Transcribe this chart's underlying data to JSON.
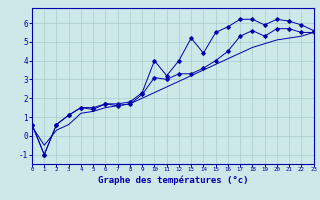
{
  "xlabel": "Graphe des températures (°c)",
  "background_color": "#cce8e8",
  "grid_color": "#aacccc",
  "line_color": "#0000aa",
  "x_hours": [
    0,
    1,
    2,
    3,
    4,
    5,
    6,
    7,
    8,
    9,
    10,
    11,
    12,
    13,
    14,
    15,
    16,
    17,
    18,
    19,
    20,
    21,
    22,
    23
  ],
  "temps_line1": [
    0.6,
    -1.0,
    0.6,
    1.1,
    1.5,
    1.5,
    1.7,
    1.7,
    1.8,
    2.3,
    4.0,
    3.2,
    4.0,
    5.2,
    4.4,
    5.5,
    5.8,
    6.2,
    6.2,
    5.9,
    6.2,
    6.1,
    5.9,
    5.6
  ],
  "temps_line2": [
    0.6,
    -1.0,
    0.6,
    1.1,
    1.5,
    1.4,
    1.7,
    1.6,
    1.7,
    2.2,
    3.1,
    3.0,
    3.3,
    3.3,
    3.6,
    4.0,
    4.5,
    5.3,
    5.6,
    5.3,
    5.7,
    5.7,
    5.5,
    5.5
  ],
  "temps_regression": [
    0.5,
    -0.5,
    0.3,
    0.6,
    1.2,
    1.3,
    1.5,
    1.6,
    1.7,
    2.0,
    2.3,
    2.6,
    2.9,
    3.2,
    3.5,
    3.8,
    4.1,
    4.4,
    4.7,
    4.9,
    5.1,
    5.2,
    5.3,
    5.5
  ],
  "ylim": [
    -1.5,
    6.8
  ],
  "xlim": [
    0,
    23
  ],
  "yticks": [
    -1,
    0,
    1,
    2,
    3,
    4,
    5,
    6
  ],
  "xtick_labels": [
    "0",
    "1",
    "2",
    "3",
    "4",
    "5",
    "6",
    "7",
    "8",
    "9",
    "10",
    "11",
    "12",
    "13",
    "14",
    "15",
    "16",
    "17",
    "18",
    "19",
    "20",
    "21",
    "22",
    "23"
  ]
}
